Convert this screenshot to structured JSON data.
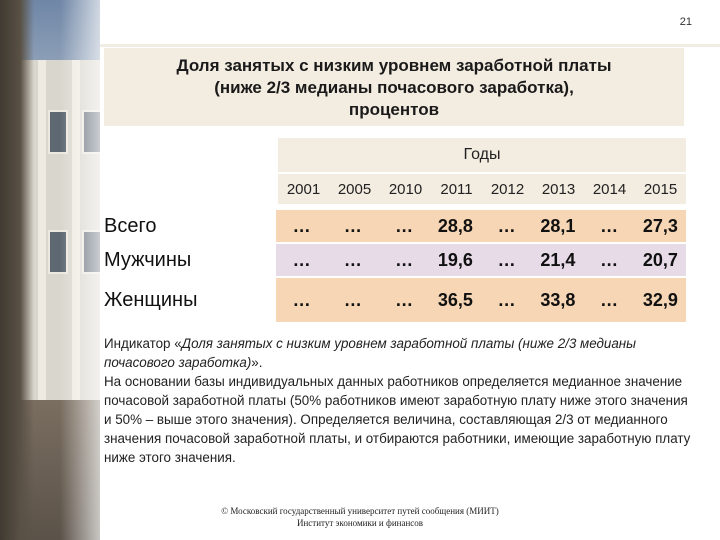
{
  "page_number": "21",
  "title": {
    "line1": "Доля занятых с низким уровнем заработной платы",
    "line2": "(ниже 2/3 медианы почасового заработка),",
    "line3": "процентов"
  },
  "table": {
    "years_header": "Годы",
    "years": [
      "2001",
      "2005",
      "2010",
      "2011",
      "2012",
      "2013",
      "2014",
      "2015"
    ],
    "rows": [
      {
        "label": "Всего",
        "values": [
          "…",
          "…",
          "…",
          "28,8",
          "…",
          "28,1",
          "…",
          "27,3"
        ]
      },
      {
        "label": "Мужчины",
        "values": [
          "…",
          "…",
          "…",
          "19,6",
          "…",
          "21,4",
          "…",
          "20,7"
        ]
      },
      {
        "label": "Женщины",
        "values": [
          "…",
          "…",
          "…",
          "36,5",
          "…",
          "33,8",
          "…",
          "32,9"
        ]
      }
    ]
  },
  "description": {
    "indicator_prefix": "Индикатор «",
    "indicator_name": "Доля занятых с низким уровнем заработной платы (ниже 2/3 медианы почасового заработка)",
    "indicator_suffix": "».",
    "body": "На основании базы индивидуальных данных работников определяется медианное значение почасовой заработной платы (50% работников имеют заработную плату ниже этого значения и 50% – выше этого значения). Определяется величина, составляющая 2/3 от медианного значения почасовой заработной платы, и отбираются работники, имеющие заработную плату ниже этого значения."
  },
  "footer": {
    "line1": "© Московский государственный университет путей сообщения (МИИТ)",
    "line2": "Институт экономики и финансов"
  },
  "colors": {
    "title_bg": "#f3ece0",
    "row_orange": "#f6d6b4",
    "row_lilac": "#e7dbe8"
  }
}
